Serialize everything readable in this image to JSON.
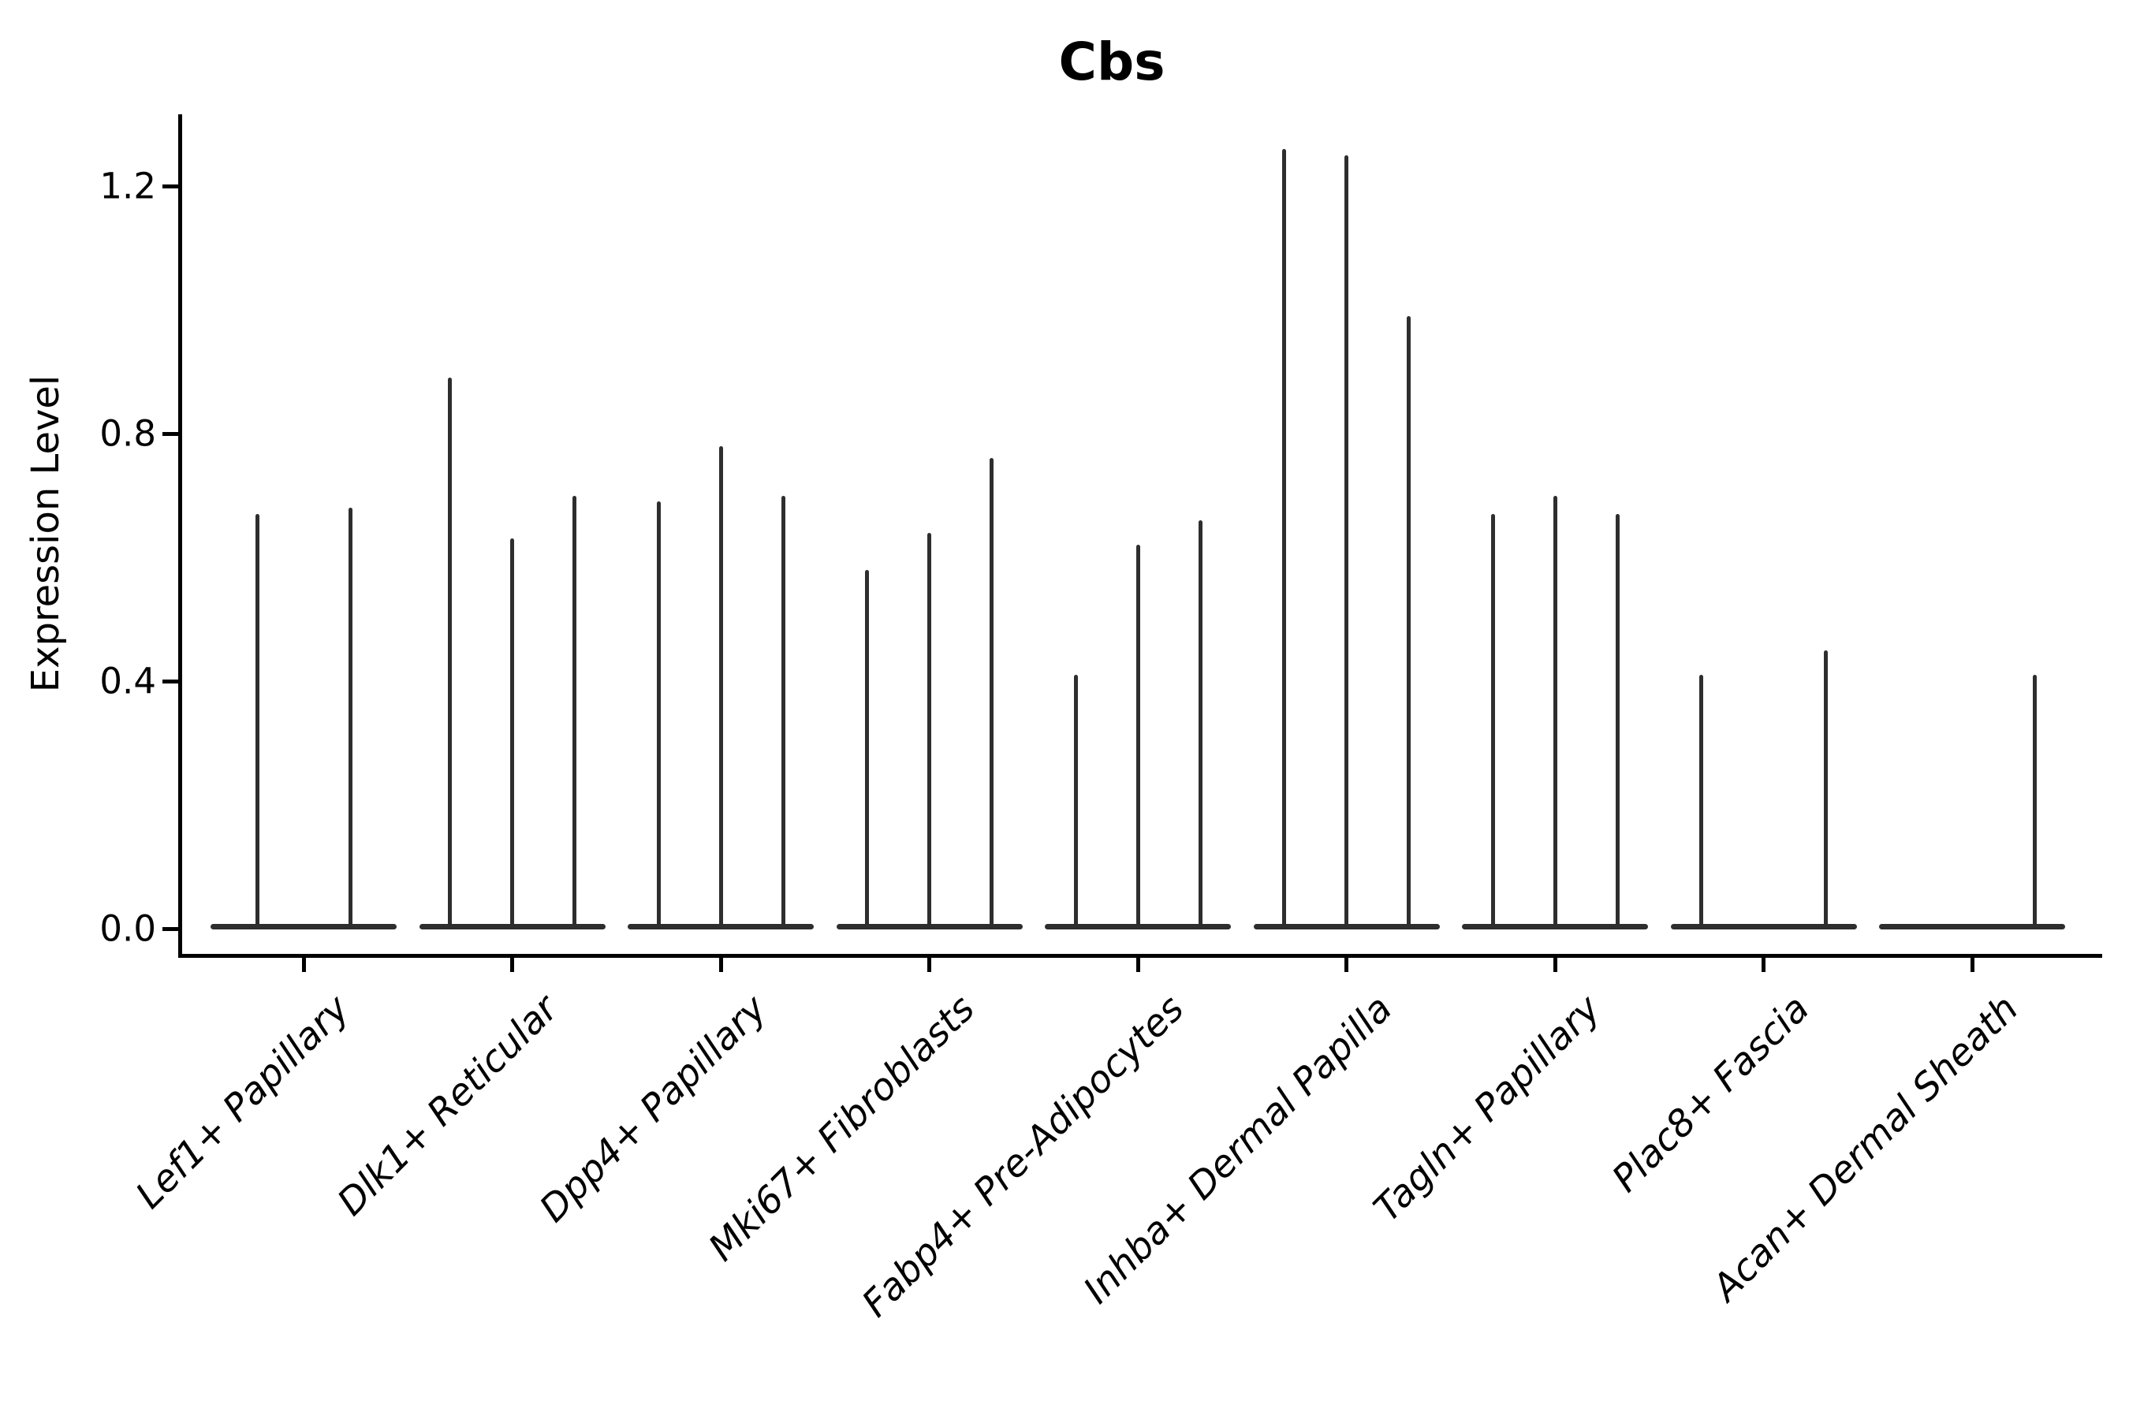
{
  "title": "Cbs",
  "y_axis": {
    "label": "Expression Level",
    "tick_labels": [
      "0.0",
      "0.4",
      "0.8",
      "1.2"
    ]
  },
  "chart_data": {
    "type": "violin",
    "title": "Cbs",
    "xlabel": "",
    "ylabel": "Expression Level",
    "ylim": [
      -0.04,
      1.36
    ],
    "yticks": [
      0.0,
      0.4,
      0.8,
      1.2
    ],
    "grid": false,
    "legend": "none",
    "violin_color": "#2e2e2e",
    "axis_color": "#000000",
    "categories": [
      "Lef1+ Papillary",
      "Dlk1+ Reticular",
      "Dpp4+ Papillary",
      "Mki67+ Fibroblasts",
      "Fabp4+ Pre-Adipocytes",
      "Inhba+ Dermal Papilla",
      "Tagln+ Papillary",
      "Plac8+ Fascia",
      "Acan+ Dermal Sheath"
    ],
    "groups": [
      {
        "label": "Lef1+ Papillary",
        "violin_max_values": [
          0.67,
          0.68
        ]
      },
      {
        "label": "Dlk1+ Reticular",
        "violin_max_values": [
          0.89,
          0.63,
          0.7
        ]
      },
      {
        "label": "Dpp4+ Papillary",
        "violin_max_values": [
          0.69,
          0.78,
          0.7
        ]
      },
      {
        "label": "Mki67+ Fibroblasts",
        "violin_max_values": [
          0.58,
          0.64,
          0.76
        ]
      },
      {
        "label": "Fabp4+ Pre-Adipocytes",
        "violin_max_values": [
          0.41,
          0.62,
          0.66
        ]
      },
      {
        "label": "Inhba+ Dermal Papilla",
        "violin_max_values": [
          1.26,
          1.25,
          0.99
        ]
      },
      {
        "label": "Tagln+ Papillary",
        "violin_max_values": [
          0.67,
          0.7,
          0.67
        ]
      },
      {
        "label": "Plac8+ Fascia",
        "violin_max_values": [
          0.41,
          0.0,
          0.45
        ]
      },
      {
        "label": "Acan+ Dermal Sheath",
        "violin_max_values": [
          0.0,
          0.0,
          0.41
        ]
      }
    ],
    "note": "Each category shows thin max-expression violins; zero-valued violins render only as the flat baseline body at 0.0"
  }
}
